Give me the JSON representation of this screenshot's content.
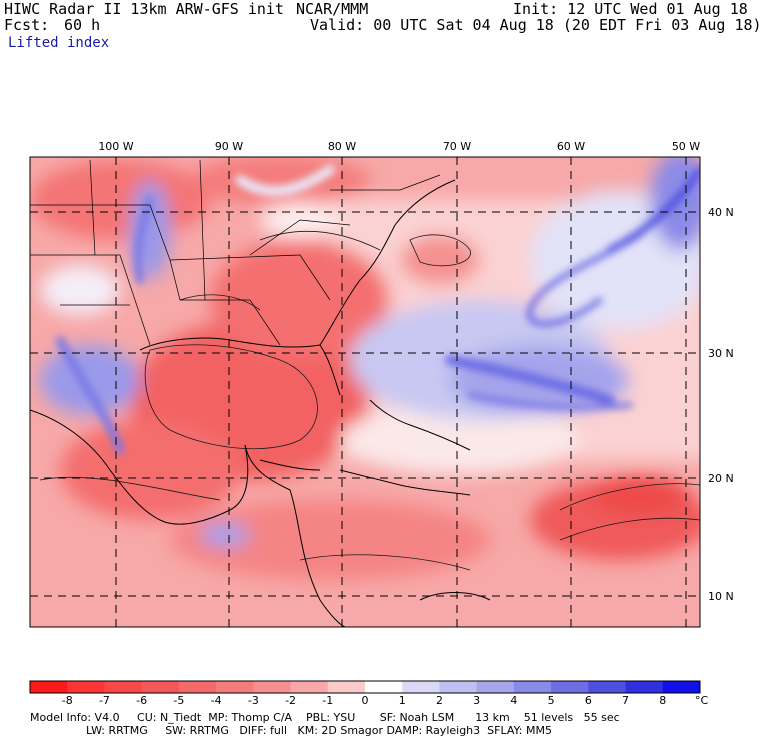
{
  "header": {
    "title": "HIWC Radar II 13km ARW-GFS init",
    "org": "NCAR/MMM",
    "init": "Init: 12 UTC Wed 01 Aug 18",
    "fcst_label": "Fcst:",
    "fcst_value": "60 h",
    "valid": "Valid: 00 UTC Sat 04 Aug 18 (20 EDT Fri 03 Aug 18)",
    "field": "Lifted index"
  },
  "map": {
    "lon_labels": [
      "100 W",
      "90 W",
      "80 W",
      "70 W",
      "60 W",
      "50 W"
    ],
    "lat_labels": [
      "40 N",
      "30 N",
      "20 N",
      "10 N"
    ]
  },
  "colorbar": {
    "levels": [
      "-8",
      "-7",
      "-6",
      "-5",
      "-4",
      "-3",
      "-2",
      "-1",
      "0",
      "1",
      "2",
      "3",
      "4",
      "5",
      "6",
      "7",
      "8"
    ],
    "unit": "°C",
    "colors": [
      "#ff1a1a",
      "#ff3535",
      "#f84848",
      "#f55858",
      "#f46a6a",
      "#f47c7c",
      "#f69090",
      "#f8a8a8",
      "#fbcaca",
      "#ffffff",
      "#dadaf6",
      "#c0c0f0",
      "#a6a6ec",
      "#8a8ae8",
      "#6e6ee4",
      "#5050e0",
      "#3030e0",
      "#1010e8"
    ]
  },
  "footer": {
    "line1": "Model Info: V4.0     CU: N_Tiedt  MP: Thomp C/A    PBL: YSU       SF: Noah LSM      13 km    51 levels   55 sec",
    "line2": "                LW: RRTMG     SW: RRTMG   DIFF: full   KM: 2D Smagor DAMP: Rayleigh3  SFLAY: MM5"
  }
}
